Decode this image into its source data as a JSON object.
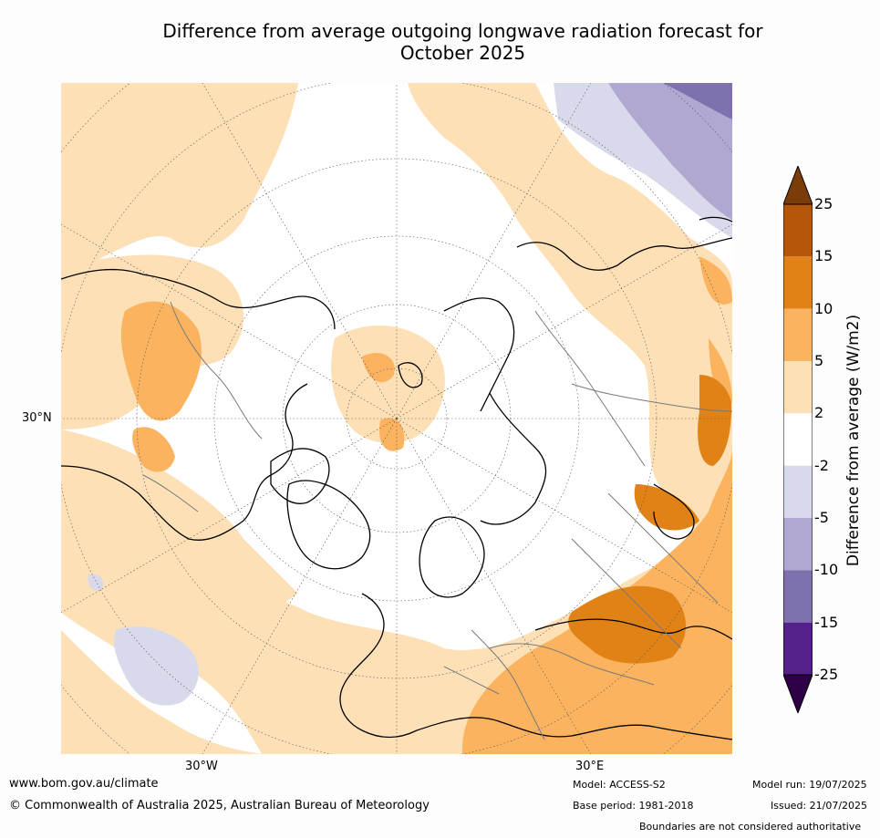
{
  "title": "Difference from average outgoing longwave radiation forecast for",
  "title_line2": "October 2025",
  "map": {
    "graticule_labels": {
      "lat_30n": "30°N",
      "lon_30w": "30°W",
      "lon_30e": "30°E"
    }
  },
  "colorbar": {
    "label": "Difference from average (W/m2)",
    "ticks": [
      "25",
      "15",
      "10",
      "5",
      "2",
      "-2",
      "-5",
      "-10",
      "-15",
      "-25"
    ],
    "colors": [
      "#7a3c08",
      "#b5570a",
      "#e08216",
      "#fbb35f",
      "#fde0b6",
      "#ffffff",
      "#d9d9ec",
      "#b1a8d2",
      "#7e71ad",
      "#532189",
      "#2d0046"
    ]
  },
  "footer": {
    "url": "www.bom.gov.au/climate",
    "copyright": "© Commonwealth of Australia 2025, Australian Bureau of Meteorology",
    "model": "Model: ACCESS-S2",
    "base_period": "Base period: 1981-2018",
    "model_run": "Model run: 19/07/2025",
    "issued": "Issued: 21/07/2025",
    "disclaimer": "Boundaries are not considered authoritative"
  }
}
